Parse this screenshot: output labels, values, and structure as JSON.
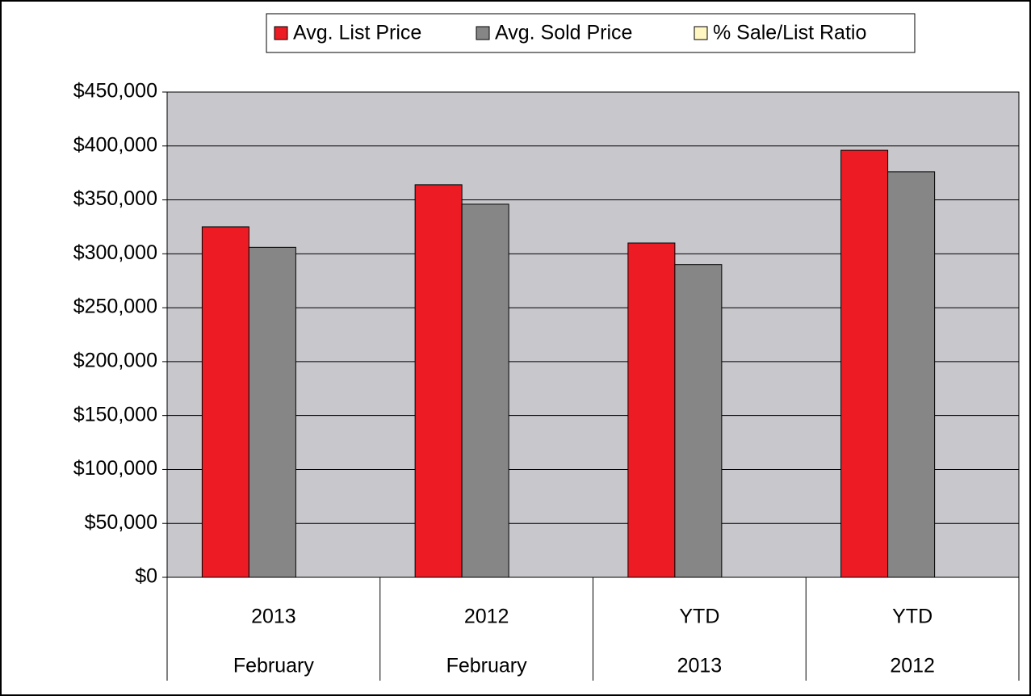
{
  "chart_data": {
    "type": "bar",
    "categories": [
      [
        "2013",
        "February"
      ],
      [
        "2012",
        "February"
      ],
      [
        "YTD",
        "2013"
      ],
      [
        "YTD",
        "2012"
      ]
    ],
    "series": [
      {
        "name": "Avg. List Price",
        "color": "#ed1c24",
        "values": [
          325000,
          364000,
          310000,
          396000
        ]
      },
      {
        "name": "Avg. Sold Price",
        "color": "#868686",
        "values": [
          306000,
          346000,
          290000,
          376000
        ]
      },
      {
        "name": "% Sale/List Ratio",
        "color": "#fff6c2",
        "values": [
          null,
          null,
          null,
          null
        ]
      }
    ],
    "ylim": [
      0,
      450000
    ],
    "yticks": [
      {
        "value": 0,
        "label": "$0"
      },
      {
        "value": 50000,
        "label": "$50,000"
      },
      {
        "value": 100000,
        "label": "$100,000"
      },
      {
        "value": 150000,
        "label": "$150,000"
      },
      {
        "value": 200000,
        "label": "$200,000"
      },
      {
        "value": 250000,
        "label": "$250,000"
      },
      {
        "value": 300000,
        "label": "$300,000"
      },
      {
        "value": 350000,
        "label": "$350,000"
      },
      {
        "value": 400000,
        "label": "$400,000"
      },
      {
        "value": 450000,
        "label": "$450,000"
      }
    ],
    "grid": true,
    "legend": "top"
  }
}
